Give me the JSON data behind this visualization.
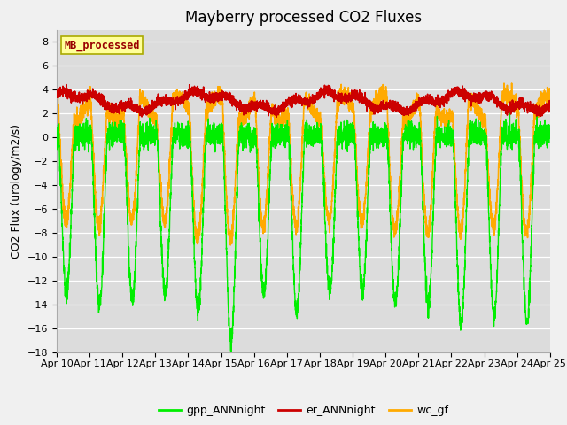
{
  "title": "Mayberry processed CO2 Fluxes",
  "ylabel": "CO2 Flux (urology/m2/s)",
  "ylim": [
    -18,
    9
  ],
  "yticks": [
    -18,
    -16,
    -14,
    -12,
    -10,
    -8,
    -6,
    -4,
    -2,
    0,
    2,
    4,
    6,
    8
  ],
  "xlim_days": [
    0,
    15
  ],
  "x_tick_labels": [
    "Apr 10",
    "Apr 11",
    "Apr 12",
    "Apr 13",
    "Apr 14",
    "Apr 15",
    "Apr 16",
    "Apr 17",
    "Apr 18",
    "Apr 19",
    "Apr 20",
    "Apr 21",
    "Apr 22",
    "Apr 23",
    "Apr 24",
    "Apr 25"
  ],
  "colors": {
    "gpp": "#00ee00",
    "er": "#cc0000",
    "wc": "#ffaa00"
  },
  "linewidths": {
    "gpp": 1.0,
    "er": 1.2,
    "wc": 1.2
  },
  "legend_entries": [
    "gpp_ANNnight",
    "er_ANNnight",
    "wc_gf"
  ],
  "inset_label": "MB_processed",
  "inset_label_color": "#990000",
  "inset_bg": "#ffff99",
  "inset_border": "#aaaa00",
  "plot_bg_color": "#dcdcdc",
  "fig_bg_color": "#f0f0f0",
  "grid_color": "#ffffff",
  "n_points": 4320,
  "title_fontsize": 12,
  "label_fontsize": 9,
  "tick_fontsize": 8
}
